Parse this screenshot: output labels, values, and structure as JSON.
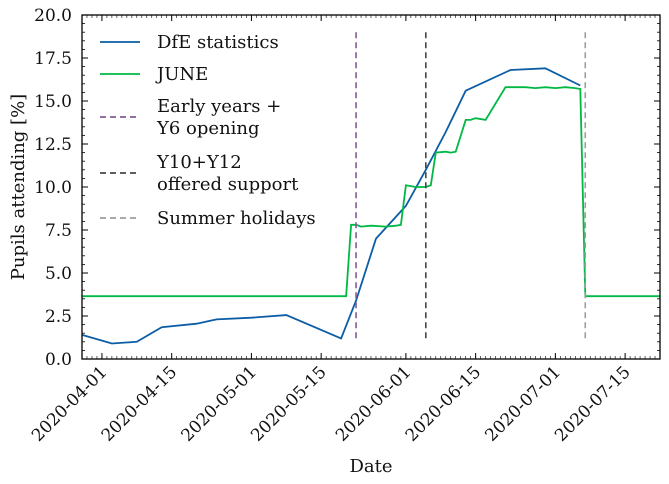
{
  "chart_data": {
    "type": "line",
    "xlabel": "Date",
    "ylabel": "Pupils attending [%]",
    "xlim": [
      "2020-03-28",
      "2020-07-22"
    ],
    "ylim": [
      0,
      20
    ],
    "xticks": [
      "2020-04-01",
      "2020-04-15",
      "2020-05-01",
      "2020-05-15",
      "2020-06-01",
      "2020-06-15",
      "2020-07-01",
      "2020-07-15"
    ],
    "yticks": [
      "0.0",
      "2.5",
      "5.0",
      "7.5",
      "10.0",
      "12.5",
      "15.0",
      "17.5",
      "20.0"
    ],
    "grid": false,
    "legend_location": "upper-left",
    "series": [
      {
        "name": "DfE statistics",
        "color": "#0c5da5",
        "points": [
          [
            "2020-03-28",
            1.4
          ],
          [
            "2020-04-03",
            0.9
          ],
          [
            "2020-04-08",
            1.0
          ],
          [
            "2020-04-13",
            1.85
          ],
          [
            "2020-04-20",
            2.05
          ],
          [
            "2020-04-24",
            2.3
          ],
          [
            "2020-05-01",
            2.4
          ],
          [
            "2020-05-08",
            2.55
          ],
          [
            "2020-05-19",
            1.2
          ],
          [
            "2020-05-22",
            3.4
          ],
          [
            "2020-05-26",
            7.0
          ],
          [
            "2020-06-01",
            8.9
          ],
          [
            "2020-06-05",
            11.0
          ],
          [
            "2020-06-09",
            13.2
          ],
          [
            "2020-06-13",
            15.6
          ],
          [
            "2020-06-22",
            16.8
          ],
          [
            "2020-06-29",
            16.9
          ],
          [
            "2020-07-06",
            15.9
          ]
        ]
      },
      {
        "name": "JUNE",
        "color": "#00b945",
        "points": [
          [
            "2020-03-28",
            3.65
          ],
          [
            "2020-05-19",
            3.65
          ],
          [
            "2020-05-20",
            3.65
          ],
          [
            "2020-05-21",
            7.8
          ],
          [
            "2020-05-22",
            7.8
          ],
          [
            "2020-05-23",
            7.7
          ],
          [
            "2020-05-25",
            7.75
          ],
          [
            "2020-05-28",
            7.7
          ],
          [
            "2020-05-30",
            7.75
          ],
          [
            "2020-05-31",
            7.8
          ],
          [
            "2020-06-01",
            10.1
          ],
          [
            "2020-06-03",
            10.0
          ],
          [
            "2020-06-05",
            10.0
          ],
          [
            "2020-06-06",
            10.1
          ],
          [
            "2020-06-07",
            12.0
          ],
          [
            "2020-06-09",
            12.05
          ],
          [
            "2020-06-10",
            12.0
          ],
          [
            "2020-06-11",
            12.05
          ],
          [
            "2020-06-13",
            13.9
          ],
          [
            "2020-06-14",
            13.9
          ],
          [
            "2020-06-15",
            14.0
          ],
          [
            "2020-06-17",
            13.9
          ],
          [
            "2020-06-21",
            15.8
          ],
          [
            "2020-06-23",
            15.8
          ],
          [
            "2020-06-25",
            15.8
          ],
          [
            "2020-06-27",
            15.75
          ],
          [
            "2020-06-29",
            15.8
          ],
          [
            "2020-07-01",
            15.75
          ],
          [
            "2020-07-03",
            15.8
          ],
          [
            "2020-07-05",
            15.75
          ],
          [
            "2020-07-06",
            15.7
          ],
          [
            "2020-07-07",
            3.65
          ],
          [
            "2020-07-22",
            3.65
          ]
        ]
      }
    ],
    "vlines": [
      {
        "name": "Early years +\nY6 opening",
        "x": "2020-05-22",
        "color": "#845b97"
      },
      {
        "name": "Y10+Y12\noffered support",
        "x": "2020-06-05",
        "color": "#474747"
      },
      {
        "name": "Summer holidays",
        "x": "2020-07-07",
        "color": "#9e9e9e"
      }
    ]
  }
}
